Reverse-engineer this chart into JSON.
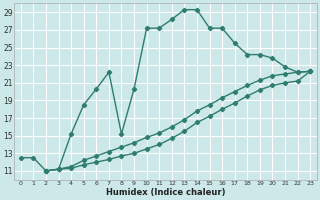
{
  "bg_color": "#cce8e8",
  "grid_color": "#ffffff",
  "line_color": "#2e7d6e",
  "xlabel": "Humidex (Indice chaleur)",
  "xlim": [
    -0.5,
    23.5
  ],
  "ylim": [
    10,
    30
  ],
  "yticks": [
    11,
    13,
    15,
    17,
    19,
    21,
    23,
    25,
    27,
    29
  ],
  "xticks": [
    0,
    1,
    2,
    3,
    4,
    5,
    6,
    7,
    8,
    9,
    10,
    11,
    12,
    13,
    14,
    15,
    16,
    17,
    18,
    19,
    20,
    21,
    22,
    23
  ],
  "line1_x": [
    0,
    1,
    2,
    3,
    4,
    5,
    6,
    7,
    8,
    9,
    10,
    11,
    12,
    13,
    14,
    15,
    16,
    17,
    18,
    19,
    20,
    21,
    22,
    23
  ],
  "line1_y": [
    12.5,
    12.5,
    11.0,
    11.2,
    15.2,
    18.5,
    20.3,
    22.2,
    15.2,
    20.3,
    27.2,
    27.2,
    28.2,
    29.3,
    29.3,
    27.2,
    27.2,
    25.5,
    24.2,
    24.2,
    23.8,
    22.8,
    22.2,
    22.3
  ],
  "line2_x": [
    2,
    3,
    4,
    5,
    6,
    7,
    8,
    9,
    10,
    11,
    12,
    13,
    14,
    15,
    16,
    17,
    18,
    19,
    20,
    21,
    22,
    23
  ],
  "line2_y": [
    11.0,
    11.2,
    11.5,
    12.2,
    12.7,
    13.2,
    13.7,
    14.2,
    14.8,
    15.3,
    16.0,
    16.8,
    17.8,
    18.5,
    19.3,
    20.0,
    20.7,
    21.3,
    21.8,
    22.0,
    22.2,
    22.3
  ],
  "line3_x": [
    2,
    3,
    4,
    5,
    6,
    7,
    8,
    9,
    10,
    11,
    12,
    13,
    14,
    15,
    16,
    17,
    18,
    19,
    20,
    21,
    22,
    23
  ],
  "line3_y": [
    11.0,
    11.2,
    11.3,
    11.7,
    12.0,
    12.3,
    12.7,
    13.0,
    13.5,
    14.0,
    14.7,
    15.5,
    16.5,
    17.2,
    18.0,
    18.7,
    19.5,
    20.2,
    20.7,
    21.0,
    21.2,
    22.3
  ]
}
